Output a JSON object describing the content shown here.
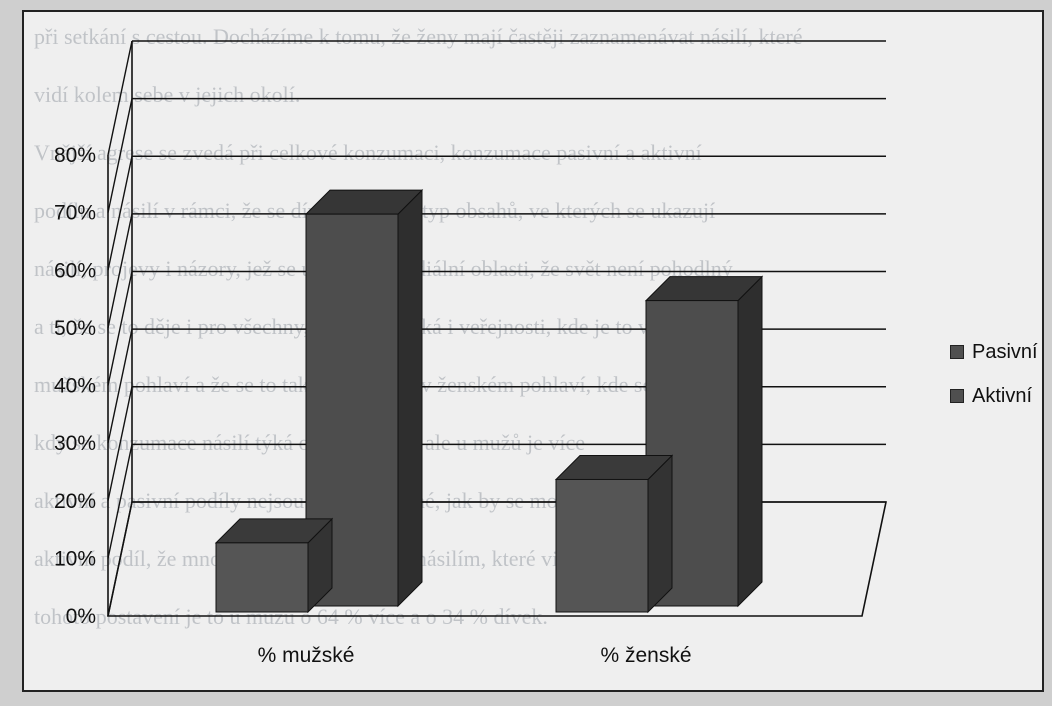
{
  "chart_data": {
    "type": "bar",
    "categories": [
      "% mužské",
      "% ženské"
    ],
    "series": [
      {
        "name": "Pasivní",
        "values": [
          12,
          23
        ]
      },
      {
        "name": "Aktivní",
        "values": [
          68,
          53
        ]
      }
    ],
    "ylim": [
      0,
      80
    ],
    "yticks": [
      "0%",
      "10%",
      "20%",
      "30%",
      "40%",
      "50%",
      "60%",
      "70%",
      "80%"
    ],
    "grid": true,
    "legend_position": "right",
    "colors": {
      "Pasivní": "#505050",
      "Aktivní": "#4f4f4f"
    }
  },
  "background_text": [
    "při setkání s cestou. Docházíme k tomu, že ženy mají častěji zaznamenávat násilí, které",
    "vidí kolem sebe v jejich okolí.",
    "Vnější agrese se zvedá při celkové konzumaci, konzumace pasivní a aktivní",
    "podílu a násilí v rámci, že se dívají na tento typ obsahů, ve kterých se ukazují",
    "násilí, projevy i názory, jež se ukazují v mediální oblasti, že svět není pohodlný",
    "a ti, že se to děje i pro všechny, jako se to týká i veřejnosti, kde je to více.",
    "mužském pohlaví a že se to tak neděje jako v ženském pohlaví, kde se mluví.",
    "kdy se konzumace násilí týká obou pohlaví, ale u mužů je více",
    "aktivní a pasivní podíly nejsou tak vyrovnané, jak by se mohlo zdát.",
    "aktivní podíl, že mnohem více se setkává s násilím, které vidí kolem",
    "tohoto postavení je to u mužů o 64 % více a o 34 % dívek."
  ]
}
